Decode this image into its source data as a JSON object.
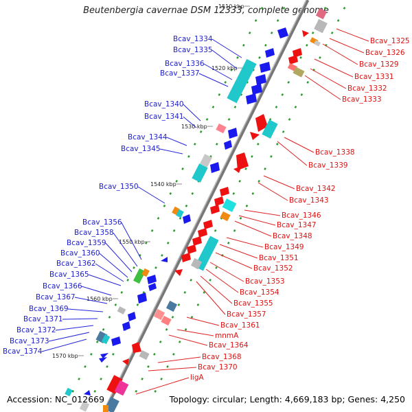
{
  "title": "Beutenbergia cavernae DSM 12333, complete genome",
  "accession": "Accession: NC_012669",
  "topology": "Topology: circular; Length: 4,669,183 bp; Genes: 4,250",
  "colors": {
    "forward_gene": "#1a1aee",
    "reverse_gene": "#ee1111",
    "backbone": "#7a7a7a"
  },
  "scale_labels": [
    "1510 kbp",
    "1520 kbp",
    "1530 kbp",
    "1540 kbp",
    "1550 kbp",
    "1560 kbp",
    "1570 kbp"
  ],
  "left_labels": [
    "Bcav_1334",
    "Bcav_1335",
    "Bcav_1336",
    "Bcav_1337",
    "Bcav_1340",
    "Bcav_1341",
    "Bcav_1344",
    "Bcav_1345",
    "Bcav_1350",
    "Bcav_1356",
    "Bcav_1358",
    "Bcav_1359",
    "Bcav_1360",
    "Bcav_1362",
    "Bcav_1365",
    "Bcav_1366",
    "Bcav_1367",
    "Bcav_1369",
    "Bcav_1371",
    "Bcav_1372",
    "Bcav_1373",
    "Bcav_1374"
  ],
  "right_labels": [
    "Bcav_1325",
    "Bcav_1326",
    "Bcav_1329",
    "Bcav_1331",
    "Bcav_1332",
    "Bcav_1333",
    "Bcav_1338",
    "Bcav_1339",
    "Bcav_1342",
    "Bcav_1343",
    "Bcav_1346",
    "Bcav_1347",
    "Bcav_1348",
    "Bcav_1349",
    "Bcav_1351",
    "Bcav_1352",
    "Bcav_1353",
    "Bcav_1354",
    "Bcav_1355",
    "Bcav_1357",
    "Bcav_1361",
    "mnmA",
    "Bcav_1364",
    "Bcav_1368",
    "Bcav_1370",
    "ligA"
  ]
}
